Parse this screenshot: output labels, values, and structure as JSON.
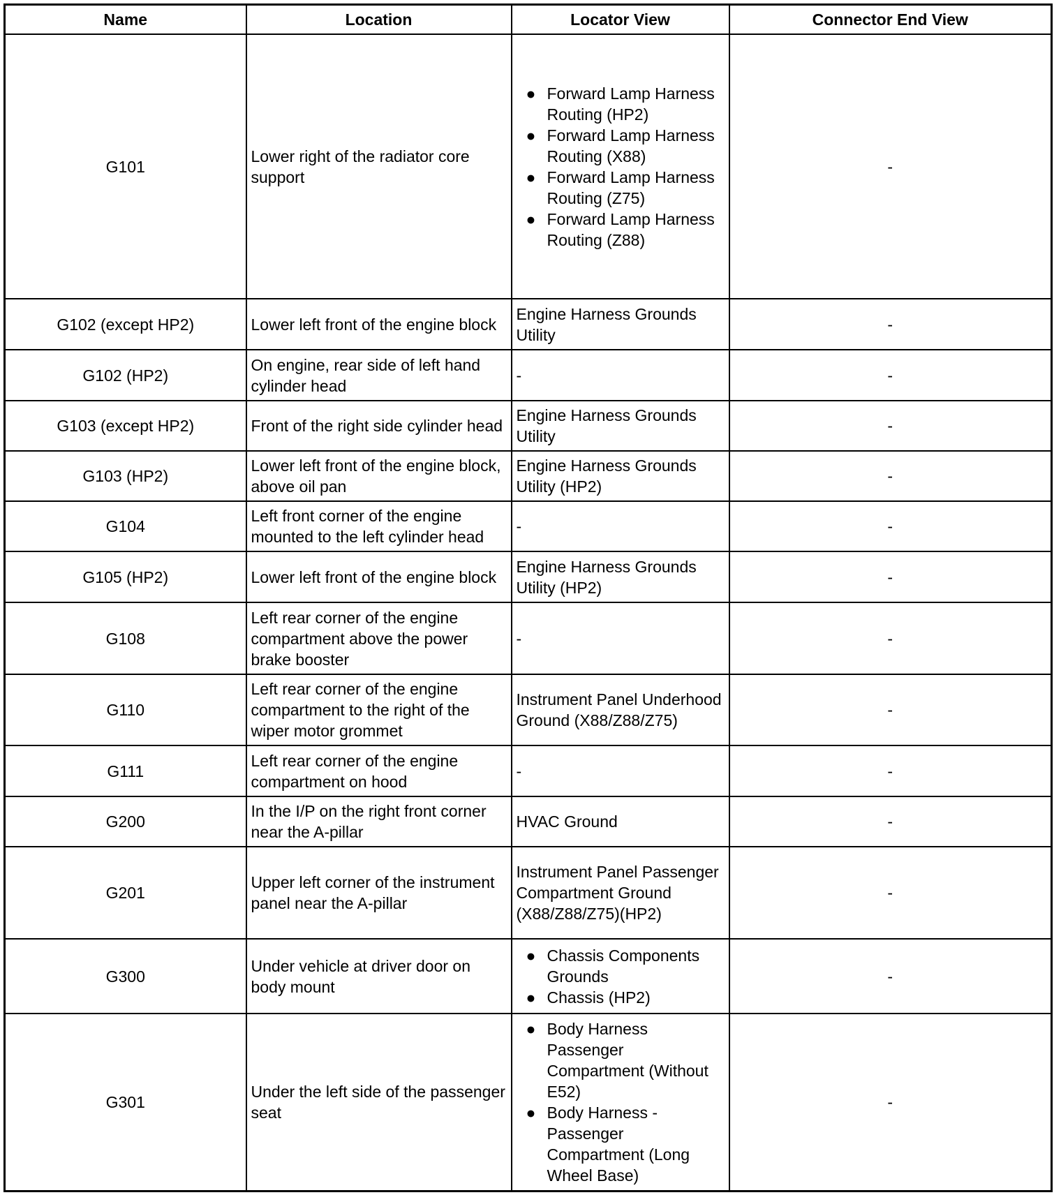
{
  "headers": [
    "Name",
    "Location",
    "Locator View",
    "Connector End View"
  ],
  "rows": [
    {
      "name": "G101",
      "location": "Lower right of the radiator core support",
      "locator": [
        "Forward Lamp Harness Routing (HP2)",
        "Forward Lamp Harness Routing (X88)",
        "Forward Lamp Harness Routing (Z75)",
        "Forward Lamp Harness Routing (Z88)"
      ],
      "connector": "-"
    },
    {
      "name": "G102 (except HP2)",
      "location": "Lower left front of the engine block",
      "locator": "Engine Harness Grounds Utility",
      "connector": "-"
    },
    {
      "name": "G102 (HP2)",
      "location": "On engine, rear side of left hand cylinder head",
      "locator": "-",
      "connector": "-"
    },
    {
      "name": "G103 (except HP2)",
      "location": "Front of the right side cylinder head",
      "locator": "Engine Harness Grounds Utility",
      "connector": "-"
    },
    {
      "name": "G103 (HP2)",
      "location": "Lower left front of the engine block, above oil pan",
      "locator": "Engine Harness Grounds Utility (HP2)",
      "connector": "-"
    },
    {
      "name": "G104",
      "location": "Left front corner of the engine mounted to the left cylinder head",
      "locator": "-",
      "connector": "-"
    },
    {
      "name": "G105 (HP2)",
      "location": "Lower left front of the engine block",
      "locator": "Engine Harness Grounds Utility (HP2)",
      "connector": "-"
    },
    {
      "name": "G108",
      "location": "Left rear corner of the engine compartment above the power brake booster",
      "locator": "-",
      "connector": "-"
    },
    {
      "name": "G110",
      "location": "Left rear corner of the engine compartment to the right of the wiper motor grommet",
      "locator": "Instrument Panel Underhood Ground (X88/Z88/Z75)",
      "connector": "-"
    },
    {
      "name": "G111",
      "location": "Left rear corner of the engine compartment on hood",
      "locator": "-",
      "connector": "-"
    },
    {
      "name": "G200",
      "location": "In the I/P on the right front corner near the A-pillar",
      "locator": "HVAC Ground",
      "connector": "-"
    },
    {
      "name": "G201",
      "location": "Upper left corner of the instrument panel near the A-pillar",
      "locator": "Instrument Panel Passenger Compartment Ground (X88/Z88/Z75)(HP2)",
      "connector": "-"
    },
    {
      "name": "G300",
      "location": "Under vehicle at driver door on body mount",
      "locator": [
        "Chassis Components Grounds",
        "Chassis (HP2)"
      ],
      "connector": "-"
    },
    {
      "name": "G301",
      "location": "Under the left side of the passenger seat",
      "locator": [
        "Body Harness Passenger Compartment (Without E52)",
        "Body Harness - Passenger Compartment (Long Wheel Base)"
      ],
      "connector": "-"
    }
  ],
  "bullet_icon": "filled-circle"
}
